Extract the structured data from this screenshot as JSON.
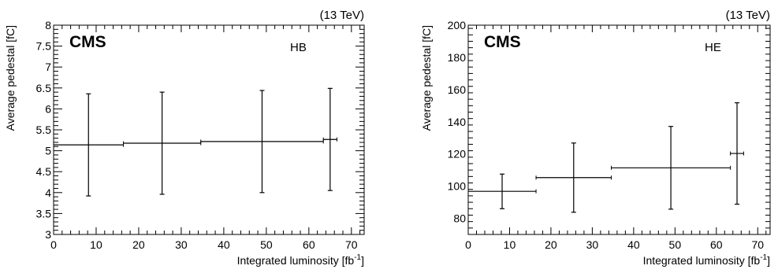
{
  "chart_data": [
    {
      "type": "scatter",
      "subtype": "horizontal-bins-with-vertical-error-bars",
      "title": "",
      "experiment_label": "CMS",
      "detector_label": "HB",
      "energy_label": "(13 TeV)",
      "xlabel_main": "Integrated luminosity [fb",
      "xlabel_sup": "-1",
      "xlabel_end": "]",
      "ylabel": "Average pedestal [fC]",
      "xlim": [
        0,
        73
      ],
      "ylim": [
        3,
        8
      ],
      "x_ticks": [
        0,
        10,
        20,
        30,
        40,
        50,
        60,
        70
      ],
      "x_tick_labels": [
        "0",
        "10",
        "20",
        "30",
        "40",
        "50",
        "60",
        "70"
      ],
      "y_ticks": [
        3,
        3.5,
        4,
        4.5,
        5,
        5.5,
        6,
        6.5,
        7,
        7.5,
        8
      ],
      "y_tick_labels": [
        "3",
        "3.5",
        "4",
        "4.5",
        "5",
        "5.5",
        "6",
        "6.5",
        "7",
        "7.5",
        "8"
      ],
      "grid": false,
      "points": [
        {
          "x": 8.2,
          "x_low": 0,
          "x_high": 16.4,
          "y": 5.14,
          "y_low": 3.92,
          "y_high": 6.36
        },
        {
          "x": 25.5,
          "x_low": 16.4,
          "x_high": 34.6,
          "y": 5.18,
          "y_low": 3.96,
          "y_high": 6.4
        },
        {
          "x": 49.0,
          "x_low": 34.6,
          "x_high": 63.4,
          "y": 5.22,
          "y_low": 4.0,
          "y_high": 6.44
        },
        {
          "x": 65.0,
          "x_low": 63.4,
          "x_high": 66.6,
          "y": 5.27,
          "y_low": 4.05,
          "y_high": 6.49
        }
      ]
    },
    {
      "type": "scatter",
      "subtype": "horizontal-bins-with-vertical-error-bars",
      "title": "",
      "experiment_label": "CMS",
      "detector_label": "HE",
      "energy_label": "(13 TeV)",
      "xlabel_main": "Integrated luminosity [fb",
      "xlabel_sup": "-1",
      "xlabel_end": "]",
      "ylabel": "Average pedestal [fC]",
      "xlim": [
        0,
        73
      ],
      "ylim": [
        70,
        200
      ],
      "x_ticks": [
        0,
        10,
        20,
        30,
        40,
        50,
        60,
        70
      ],
      "x_tick_labels": [
        "0",
        "10",
        "20",
        "30",
        "40",
        "50",
        "60",
        "70"
      ],
      "y_ticks": [
        80,
        100,
        120,
        140,
        160,
        180,
        200
      ],
      "y_tick_labels": [
        "80",
        "100",
        "120",
        "140",
        "160",
        "180",
        "200"
      ],
      "grid": false,
      "points": [
        {
          "x": 8.2,
          "x_low": 0,
          "x_high": 16.4,
          "y": 96.8,
          "y_low": 86.0,
          "y_high": 107.5
        },
        {
          "x": 25.5,
          "x_low": 16.4,
          "x_high": 34.6,
          "y": 105.3,
          "y_low": 83.8,
          "y_high": 126.8
        },
        {
          "x": 49.0,
          "x_low": 34.6,
          "x_high": 63.4,
          "y": 111.4,
          "y_low": 85.7,
          "y_high": 137.1
        },
        {
          "x": 65.0,
          "x_low": 63.4,
          "x_high": 66.6,
          "y": 120.3,
          "y_low": 88.8,
          "y_high": 151.8
        }
      ]
    }
  ]
}
